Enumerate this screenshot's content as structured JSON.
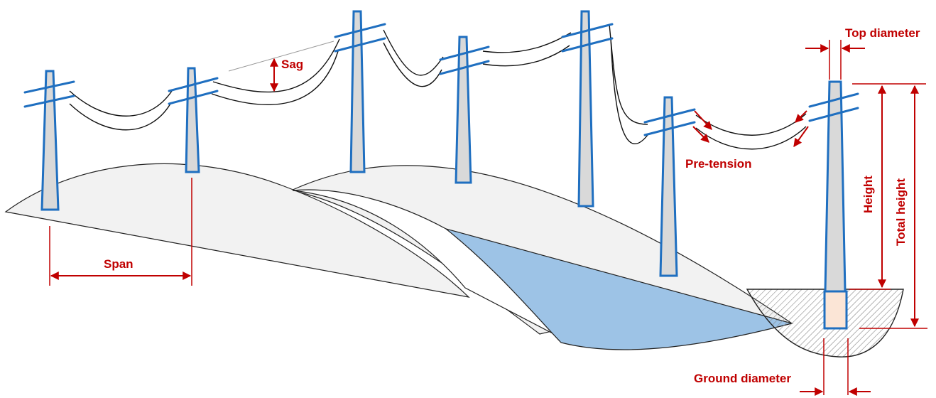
{
  "labels": {
    "sag": "Sag",
    "span": "Span",
    "pre_tension": "Pre-tension",
    "top_diameter": "Top diameter",
    "height": "Height",
    "total_height": "Total height",
    "ground_diameter": "Ground diameter"
  },
  "colors": {
    "annotation": "#c00000",
    "pole_outline": "#1f6fc0",
    "pole_fill": "#d9d9d9",
    "water": "#9dc3e6",
    "terrain": "#f2f2f2",
    "buried_section": "#fbe5d6"
  }
}
